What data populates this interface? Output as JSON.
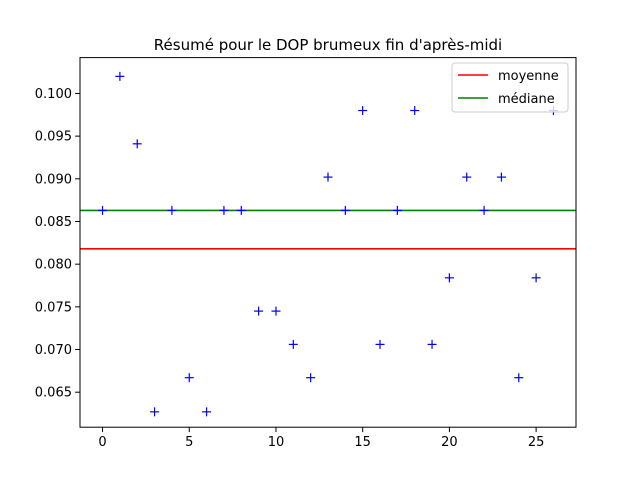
{
  "chart_data": {
    "type": "scatter",
    "title": "Résumé pour le DOP brumeux fin d'après-midi",
    "xlabel": "",
    "ylabel": "",
    "xlim": [
      -1.3,
      27.3
    ],
    "ylim": [
      0.0609,
      0.1042
    ],
    "grid": false,
    "legend_position": "top-right",
    "xticks": [
      0,
      5,
      10,
      15,
      20,
      25
    ],
    "xtick_labels": [
      "0",
      "5",
      "10",
      "15",
      "20",
      "25"
    ],
    "yticks": [
      0.065,
      0.07,
      0.075,
      0.08,
      0.085,
      0.09,
      0.095,
      0.1
    ],
    "ytick_labels": [
      "0.065",
      "0.070",
      "0.075",
      "0.080",
      "0.085",
      "0.090",
      "0.095",
      "0.100"
    ],
    "points": {
      "marker": "+",
      "color": "#0000ff",
      "x": [
        0,
        1,
        2,
        3,
        4,
        5,
        6,
        7,
        8,
        9,
        10,
        11,
        12,
        13,
        14,
        15,
        16,
        17,
        18,
        19,
        20,
        21,
        22,
        23,
        24,
        25,
        26
      ],
      "y": [
        0.0863,
        0.102,
        0.0941,
        0.0627,
        0.0863,
        0.0667,
        0.0627,
        0.0863,
        0.0863,
        0.0745,
        0.0745,
        0.0706,
        0.0667,
        0.0902,
        0.0863,
        0.098,
        0.0706,
        0.0863,
        0.098,
        0.0706,
        0.0784,
        0.0902,
        0.0863,
        0.0902,
        0.0667,
        0.0784,
        0.098
      ]
    },
    "lines": [
      {
        "name": "moyenne",
        "y": 0.0818,
        "color": "#ff0000"
      },
      {
        "name": "médiane",
        "y": 0.0863,
        "color": "#008000"
      }
    ]
  }
}
